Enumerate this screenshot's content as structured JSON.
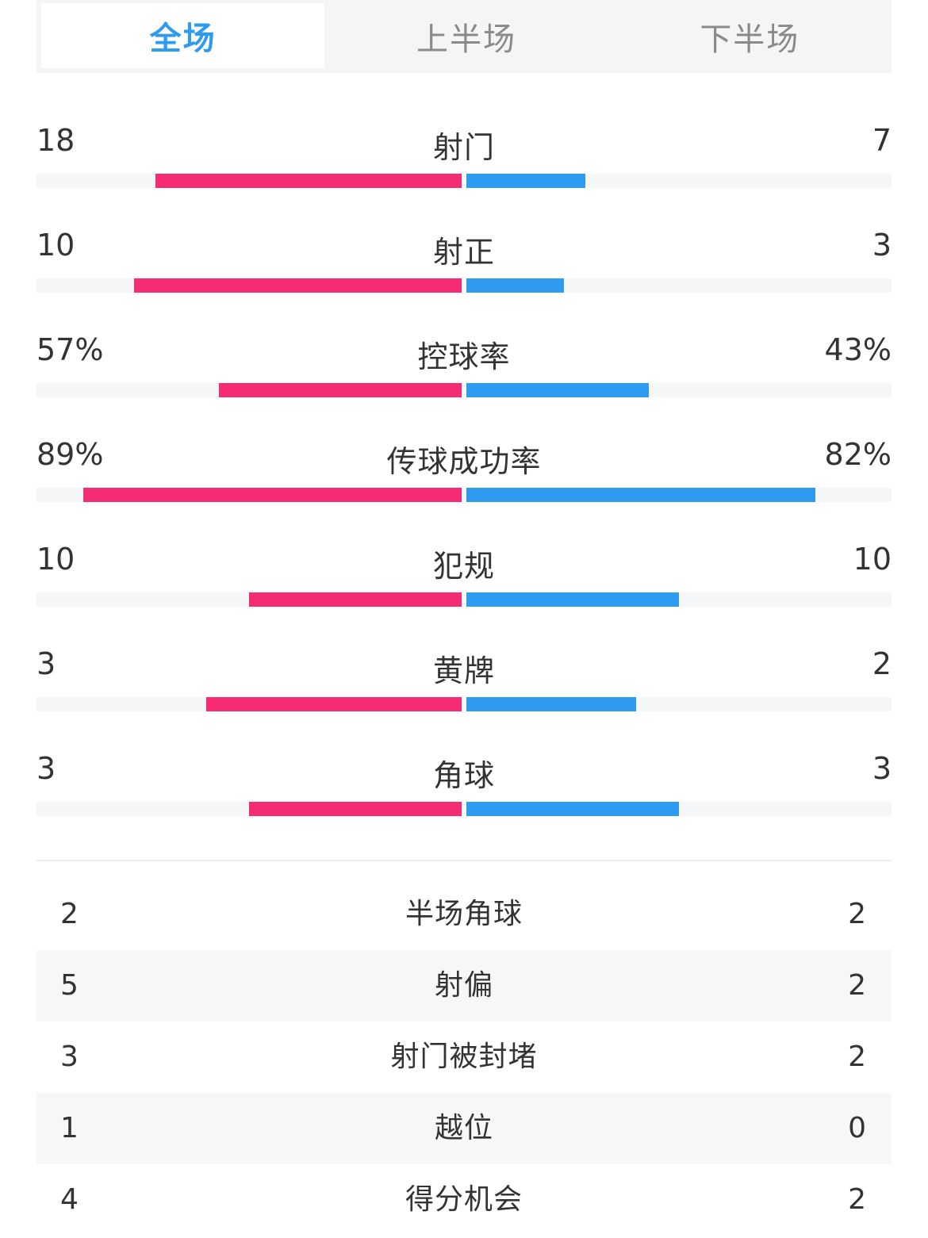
{
  "tabs": [
    "全场",
    "上半场",
    "下半场"
  ],
  "active_tab": 0,
  "colors": {
    "left": "#f52b73",
    "right": "#2f9bf0",
    "active_tab": "#2f9bf0"
  },
  "bar_stats": [
    {
      "label": "射门",
      "left_display": "18",
      "right_display": "7",
      "left_fill": 0.72,
      "right_fill": 0.28
    },
    {
      "label": "射正",
      "left_display": "10",
      "right_display": "3",
      "left_fill": 0.77,
      "right_fill": 0.23
    },
    {
      "label": "控球率",
      "left_display": "57%",
      "right_display": "43%",
      "left_fill": 0.57,
      "right_fill": 0.43
    },
    {
      "label": "传球成功率",
      "left_display": "89%",
      "right_display": "82%",
      "left_fill": 0.89,
      "right_fill": 0.82
    },
    {
      "label": "犯规",
      "left_display": "10",
      "right_display": "10",
      "left_fill": 0.5,
      "right_fill": 0.5
    },
    {
      "label": "黄牌",
      "left_display": "3",
      "right_display": "2",
      "left_fill": 0.6,
      "right_fill": 0.4
    },
    {
      "label": "角球",
      "left_display": "3",
      "right_display": "3",
      "left_fill": 0.5,
      "right_fill": 0.5
    }
  ],
  "table_stats": [
    {
      "label": "半场角球",
      "left": "2",
      "right": "2"
    },
    {
      "label": "射偏",
      "left": "5",
      "right": "2"
    },
    {
      "label": "射门被封堵",
      "left": "3",
      "right": "2"
    },
    {
      "label": "越位",
      "left": "1",
      "right": "0"
    },
    {
      "label": "得分机会",
      "left": "4",
      "right": "2"
    }
  ]
}
